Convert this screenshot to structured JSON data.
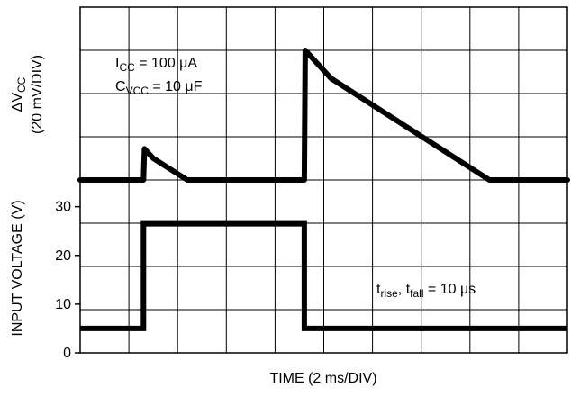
{
  "chart_data": [
    {
      "type": "line",
      "title": "",
      "xlabel": "TIME (2 ms/DIV)",
      "ylabel_line1_prefix": "ΔV",
      "ylabel_line1_sub": "CC",
      "ylabel_line2": "(20 mV/DIV)",
      "x_divisions": 10,
      "y_divisions": 8,
      "grid": true,
      "annotation": {
        "line1": {
          "a": "I",
          "a_sub": "CC",
          "b": " = 100 μA"
        },
        "line2": {
          "a": "C",
          "a_sub": "VCC",
          "b": " = 10 μF"
        }
      },
      "series": [
        {
          "x": [
            0,
            1.3,
            1.32,
            1.5,
            2.2,
            4.6,
            4.62,
            5.15,
            8.4,
            10
          ],
          "y": [
            0,
            0,
            0.72,
            0.5,
            0,
            0,
            3.0,
            2.35,
            0,
            0
          ]
        }
      ]
    },
    {
      "type": "line",
      "title": "",
      "xlabel": "TIME (2 ms/DIV)",
      "ylabel": "INPUT VOLTAGE (V)",
      "yticks": [
        "0",
        "10",
        "20",
        "30"
      ],
      "ylim": [
        0,
        34
      ],
      "annotation": {
        "a": "t",
        "a_sub": "rise",
        "b": ", t",
        "b_sub": "fall",
        "c": " = 10 μs"
      },
      "series": [
        {
          "x": [
            0,
            1.3,
            1.3,
            4.6,
            4.6,
            10
          ],
          "y": [
            5,
            5,
            26.5,
            26.5,
            5,
            5
          ]
        }
      ]
    }
  ]
}
